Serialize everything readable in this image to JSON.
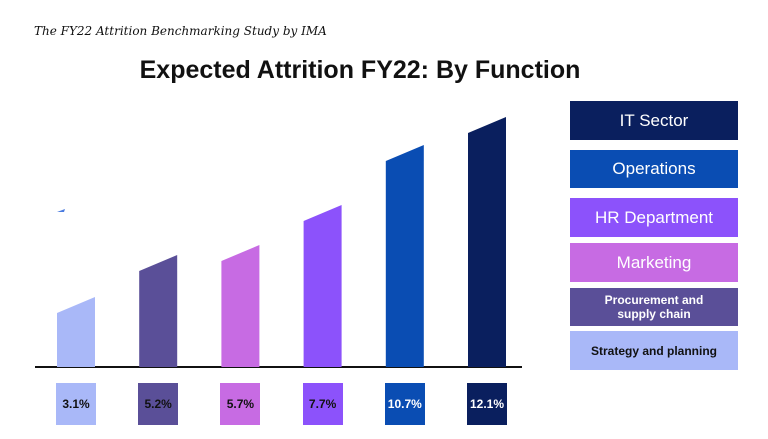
{
  "chart_data": {
    "type": "bar",
    "subtitle": "The FY22 Attrition Benchmarking Study by IMA",
    "title": "Expected Attrition FY22: By Function",
    "categories": [
      "Strategy and planning",
      "Procurement and supply chain",
      "Marketing",
      "HR Department",
      "Operations",
      "IT Sector"
    ],
    "values": [
      3.1,
      5.2,
      5.7,
      7.7,
      10.7,
      12.1
    ],
    "value_labels": [
      "3.1%",
      "5.2%",
      "5.7%",
      "7.7%",
      "10.7%",
      "12.1%"
    ],
    "colors": [
      "#a9b8f8",
      "#5a4f98",
      "#c76be3",
      "#8c52fb",
      "#0a4db3",
      "#0a1f5e"
    ]
  }
}
